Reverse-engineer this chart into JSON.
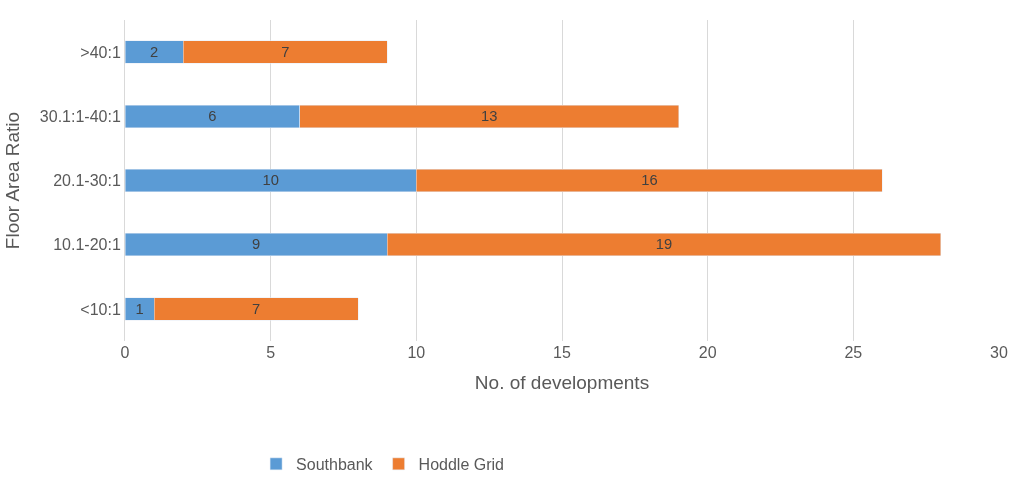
{
  "chart_data": {
    "type": "bar",
    "orientation": "horizontal",
    "stacked": true,
    "categories": [
      ">40:1",
      "30.1:1-40:1",
      "20.1-30:1",
      "10.1-20:1",
      "<10:1"
    ],
    "series": [
      {
        "name": "Southbank",
        "color": "#5b9bd5",
        "values": [
          2,
          6,
          10,
          9,
          1
        ]
      },
      {
        "name": "Hoddle Grid",
        "color": "#ed7d31",
        "values": [
          7,
          13,
          16,
          19,
          7
        ]
      }
    ],
    "xlabel": "No. of developments",
    "ylabel": "Floor Area Ratio",
    "xlim": [
      0,
      30
    ],
    "xticks": [
      0,
      5,
      10,
      15,
      20,
      25,
      30
    ],
    "grid": "x",
    "legend": "bottom",
    "data_labels": true
  }
}
